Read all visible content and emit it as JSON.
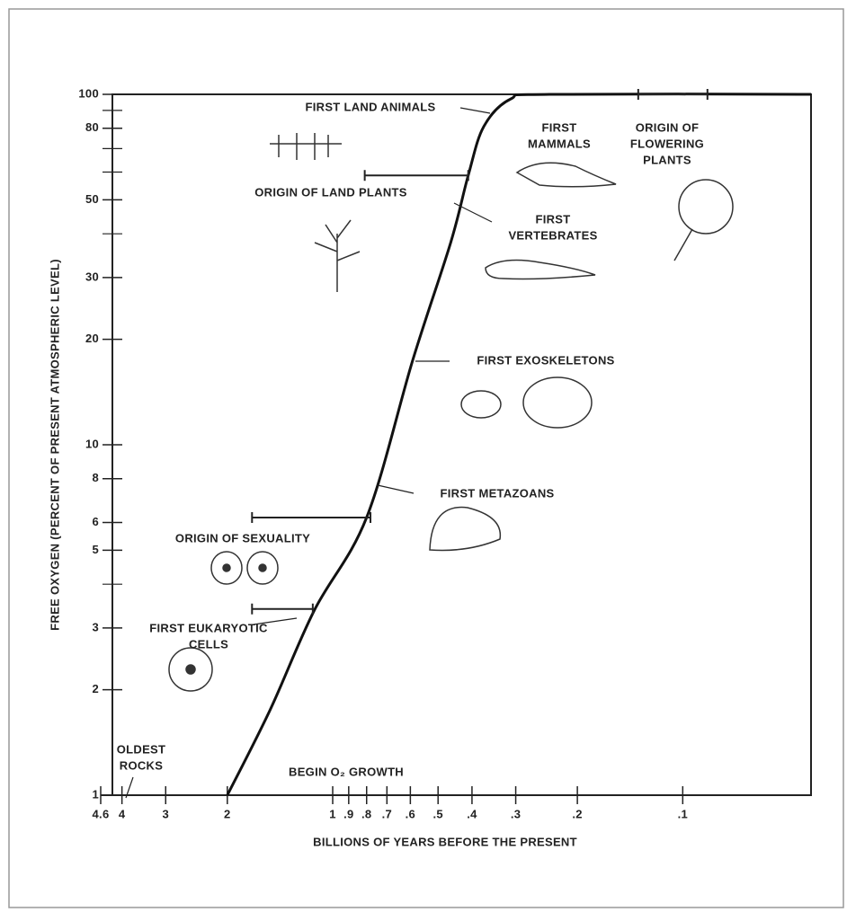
{
  "chart_data": {
    "type": "line",
    "y_label": "FREE OXYGEN (PERCENT OF PRESENT ATMOSPHERIC LEVEL)",
    "x_label": "BILLIONS OF YEARS BEFORE THE PRESENT",
    "x": [
      2,
      1.51,
      1.13,
      0.8,
      0.59,
      0.46,
      0.41,
      0.37,
      0.31,
      0.24,
      0.043
    ],
    "values": [
      1,
      1.75,
      3.36,
      6.2,
      17.5,
      37.8,
      58.7,
      81,
      97,
      100,
      100
    ],
    "color": "#111111",
    "log_x": true,
    "log_y": true,
    "x_reversed": true,
    "xlim": [
      4.6,
      0.043
    ],
    "ylim": [
      1,
      100
    ],
    "xticks": [
      4.6,
      4,
      3,
      2,
      1,
      {
        "value": 0.9,
        "label": ".9"
      },
      {
        "value": 0.8,
        "label": ".8"
      },
      {
        "value": 0.7,
        "label": ".7"
      },
      {
        "value": 0.6,
        "label": ".6"
      },
      {
        "value": 0.5,
        "label": ".5"
      },
      {
        "value": 0.4,
        "label": ".4"
      },
      {
        "value": 0.3,
        "label": ".3"
      },
      {
        "value": 0.2,
        "label": ".2"
      },
      {
        "value": 0.1,
        "label": ".1"
      }
    ],
    "yticks": [
      1,
      2,
      3,
      5,
      6,
      8,
      10,
      20,
      30,
      50,
      80,
      100
    ],
    "yminorticks": [
      4,
      40,
      60,
      70,
      90
    ],
    "annotations": [
      {
        "lines": [
          "FIRST LAND ANIMALS"
        ]
      },
      {
        "lines": [
          "ORIGIN OF LAND PLANTS"
        ]
      },
      {
        "lines": [
          "FIRST",
          "VERTEBRATES"
        ]
      },
      {
        "lines": [
          "FIRST",
          "MAMMALS"
        ]
      },
      {
        "lines": [
          "ORIGIN OF",
          "FLOWERING",
          "PLANTS"
        ]
      },
      {
        "lines": [
          "FIRST EXOSKELETONS"
        ]
      },
      {
        "lines": [
          "FIRST METAZOANS"
        ]
      },
      {
        "lines": [
          "ORIGIN OF SEXUALITY"
        ]
      },
      {
        "lines": [
          "FIRST EUKARYOTIC",
          "CELLS"
        ]
      },
      {
        "lines": [
          "OLDEST",
          "ROCKS"
        ]
      },
      {
        "lines": [
          "BEGIN O₂ GROWTH"
        ]
      }
    ],
    "range_bars": [
      {
        "x": [
          0.81,
          0.41
        ],
        "y": 58.7
      },
      {
        "x": [
          0.134,
          0.085
        ],
        "y": 100
      },
      {
        "x": [
          1.7,
          0.78
        ],
        "y": 6.2
      },
      {
        "x": [
          1.7,
          1.14
        ],
        "y": 3.4
      }
    ]
  }
}
